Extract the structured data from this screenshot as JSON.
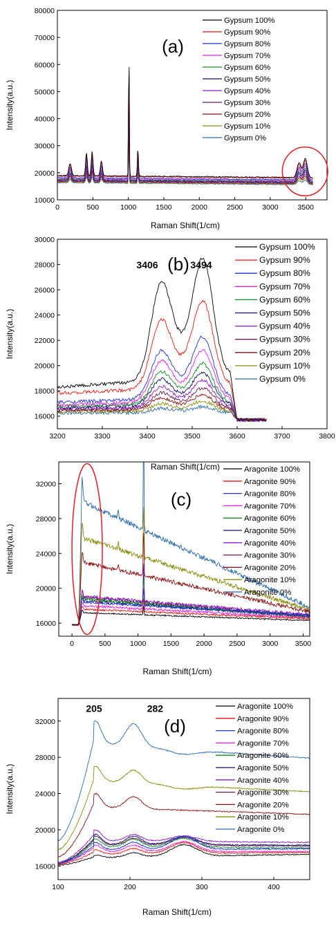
{
  "series_colors": [
    "#000000",
    "#e8130f",
    "#1f2fd6",
    "#e81ee0",
    "#138a25",
    "#101070",
    "#8a18c8",
    "#6a1a56",
    "#8a0e10",
    "#8a8a0a",
    "#2a6aa8"
  ],
  "chart_data": [
    {
      "id": "a",
      "type": "line",
      "panel_label": "(a)",
      "xlabel": "Raman Shift(1/cm)",
      "ylabel": "Intensity(a.u.)",
      "xlim": [
        0,
        3800
      ],
      "ylim": [
        10000,
        80000
      ],
      "xticks": [
        0,
        500,
        1000,
        1500,
        2000,
        2500,
        3000,
        3500
      ],
      "yticks": [
        10000,
        20000,
        30000,
        40000,
        50000,
        60000,
        70000,
        80000
      ],
      "xrange": [
        0,
        3600
      ],
      "legend": [
        "Gypsum 100%",
        "Gypsum 90%",
        "Gypsum 80%",
        "Gypsum 70%",
        "Gypsum 60%",
        "Gypsum 50%",
        "Gypsum 40%",
        "Gypsum 30%",
        "Gypsum 20%",
        "Gypsum 10%",
        "Gypsum  0%"
      ],
      "baselines": [
        19000,
        18800,
        18200,
        17900,
        17600,
        17400,
        17200,
        17000,
        16800,
        16600,
        16400
      ],
      "slope": -800,
      "peaks_top": [
        [
          180,
          4500,
          18
        ],
        [
          410,
          8500,
          12
        ],
        [
          490,
          9000,
          12
        ],
        [
          620,
          5500,
          14
        ],
        [
          1008,
          51000,
          5
        ],
        [
          1135,
          10500,
          7
        ],
        [
          3406,
          5500,
          28
        ],
        [
          3494,
          7000,
          28
        ]
      ],
      "annotations": [],
      "ellipse": [
        3490,
        20500,
        320,
        9000
      ]
    },
    {
      "id": "b",
      "type": "line",
      "panel_label": "(b)",
      "xlabel": "Raman Shift(1/cm)",
      "ylabel": "Intensity(a.u.)",
      "xlim": [
        3200,
        3800
      ],
      "ylim": [
        15000,
        30000
      ],
      "xticks": [
        3200,
        3300,
        3400,
        3500,
        3600,
        3700,
        3800
      ],
      "yticks": [
        16000,
        18000,
        20000,
        22000,
        24000,
        26000,
        28000,
        30000
      ],
      "xrange": [
        3200,
        3665
      ],
      "legend": [
        "Gypsum 100%",
        "Gypsum 90%",
        "Gypsum 80%",
        "Gypsum 70%",
        "Gypsum 60%",
        "Gypsum 50%",
        "Gypsum 40%",
        "Gypsum 30%",
        "Gypsum 20%",
        "Gypsum 10%",
        "Gypsum  0%"
      ],
      "series": [
        {
          "base": 18300,
          "p1": 6700,
          "p2": 8200
        },
        {
          "base": 17800,
          "p1": 4700,
          "p2": 5900
        },
        {
          "base": 17100,
          "p1": 3300,
          "p2": 4200
        },
        {
          "base": 16900,
          "p1": 2800,
          "p2": 3500
        },
        {
          "base": 16800,
          "p1": 2200,
          "p2": 2700
        },
        {
          "base": 16700,
          "p1": 1800,
          "p2": 2200
        },
        {
          "base": 16600,
          "p1": 1400,
          "p2": 1800
        },
        {
          "base": 16500,
          "p1": 1100,
          "p2": 1400
        },
        {
          "base": 16450,
          "p1": 800,
          "p2": 1000
        },
        {
          "base": 16350,
          "p1": 500,
          "p2": 700
        },
        {
          "base": 16250,
          "p1": 300,
          "p2": 400
        }
      ],
      "drop_to": 15700,
      "annotations": [
        {
          "text": "3406",
          "x": 3400,
          "y": 27700
        },
        {
          "text": "3494",
          "x": 3520,
          "y": 27700
        }
      ]
    },
    {
      "id": "c",
      "type": "line",
      "panel_label": "(c)",
      "xlabel": "Raman Shift(1/cm)",
      "ylabel": "Intensity(a.u.)",
      "xlim": [
        -200,
        3600
      ],
      "ylim": [
        14500,
        34500
      ],
      "xticks": [
        0,
        500,
        1000,
        1500,
        2000,
        2500,
        3000,
        3500
      ],
      "yticks": [
        16000,
        20000,
        24000,
        28000,
        32000
      ],
      "xrange": [
        0,
        3600
      ],
      "legend": [
        "Aragonite 100%",
        "Aragonite  90%",
        "Aragonite  80%",
        "Aragonite  70%",
        "Aragonite  60%",
        "Aragonite  50%",
        "Aragonite  40%",
        "Aragonite  30%",
        "Aragonite  20%",
        "Aragonite  10%",
        "Aragonite   0%"
      ],
      "series": [
        {
          "start": 17200,
          "end": 16300
        },
        {
          "start": 17600,
          "end": 16500
        },
        {
          "start": 18400,
          "end": 16900
        },
        {
          "start": 18000,
          "end": 16600
        },
        {
          "start": 18800,
          "end": 16700
        },
        {
          "start": 18600,
          "end": 16800
        },
        {
          "start": 19100,
          "end": 16950
        },
        {
          "start": 19000,
          "end": 16800
        },
        {
          "start": 23000,
          "end": 17300
        },
        {
          "start": 25800,
          "end": 17500
        },
        {
          "start": 30000,
          "end": 17800
        }
      ],
      "sharp_peak": [
        1085,
        13000
      ],
      "annotations": [],
      "ellipse": [
        230,
        24500,
        230,
        9800
      ]
    },
    {
      "id": "d",
      "type": "line",
      "panel_label": "(d)",
      "xlabel": "Raman Shift(1/cm)",
      "ylabel": "Intensity(a.u.)",
      "xlim": [
        100,
        450
      ],
      "ylim": [
        14500,
        34500
      ],
      "xticks": [
        100,
        200,
        300,
        400
      ],
      "yticks": [
        16000,
        20000,
        24000,
        28000,
        32000
      ],
      "xrange": [
        100,
        450
      ],
      "legend": [
        "Aragonite 100%",
        "Aragonite  90%",
        "Aragonite  80%",
        "Aragonite  70%",
        "Aragonite  60%",
        "Aragonite  50%",
        "Aragonite  40%",
        "Aragonite  30%",
        "Aragonite  20%",
        "Aragonite  10%",
        "Aragonite   0%"
      ],
      "series": [
        {
          "start": 16100,
          "p1": 17200,
          "mid": 16900,
          "p2": 17400,
          "p3": 18200,
          "end": 17300
        },
        {
          "start": 16200,
          "p1": 17800,
          "mid": 17300,
          "p2": 17900,
          "p3": 18500,
          "end": 17500
        },
        {
          "start": 16300,
          "p1": 18600,
          "mid": 17800,
          "p2": 18600,
          "p3": 19200,
          "end": 17900
        },
        {
          "start": 16300,
          "p1": 18300,
          "mid": 17600,
          "p2": 18300,
          "p3": 18700,
          "end": 17600
        },
        {
          "start": 16300,
          "p1": 19000,
          "mid": 18100,
          "p2": 19000,
          "p3": 19100,
          "end": 18000
        },
        {
          "start": 16300,
          "p1": 19500,
          "mid": 18400,
          "p2": 19300,
          "p3": 19300,
          "end": 18300
        },
        {
          "start": 16400,
          "p1": 20000,
          "mid": 18800,
          "p2": 19500,
          "p3": 19400,
          "end": 18600
        },
        {
          "start": 16300,
          "p1": 19300,
          "mid": 18300,
          "p2": 19100,
          "p3": 19200,
          "end": 18200
        },
        {
          "start": 17000,
          "p1": 24000,
          "mid": 22500,
          "p2": 23800,
          "p3": 22500,
          "end": 21700
        },
        {
          "start": 17800,
          "p1": 27000,
          "mid": 25400,
          "p2": 26800,
          "p3": 25000,
          "end": 24200
        },
        {
          "start": 18800,
          "p1": 32000,
          "mid": 29500,
          "p2": 32000,
          "p3": 29000,
          "end": 27900
        }
      ],
      "annotations": [
        {
          "text": "205",
          "x": 150,
          "y": 33000
        },
        {
          "text": "282",
          "x": 235,
          "y": 33000
        }
      ]
    }
  ]
}
